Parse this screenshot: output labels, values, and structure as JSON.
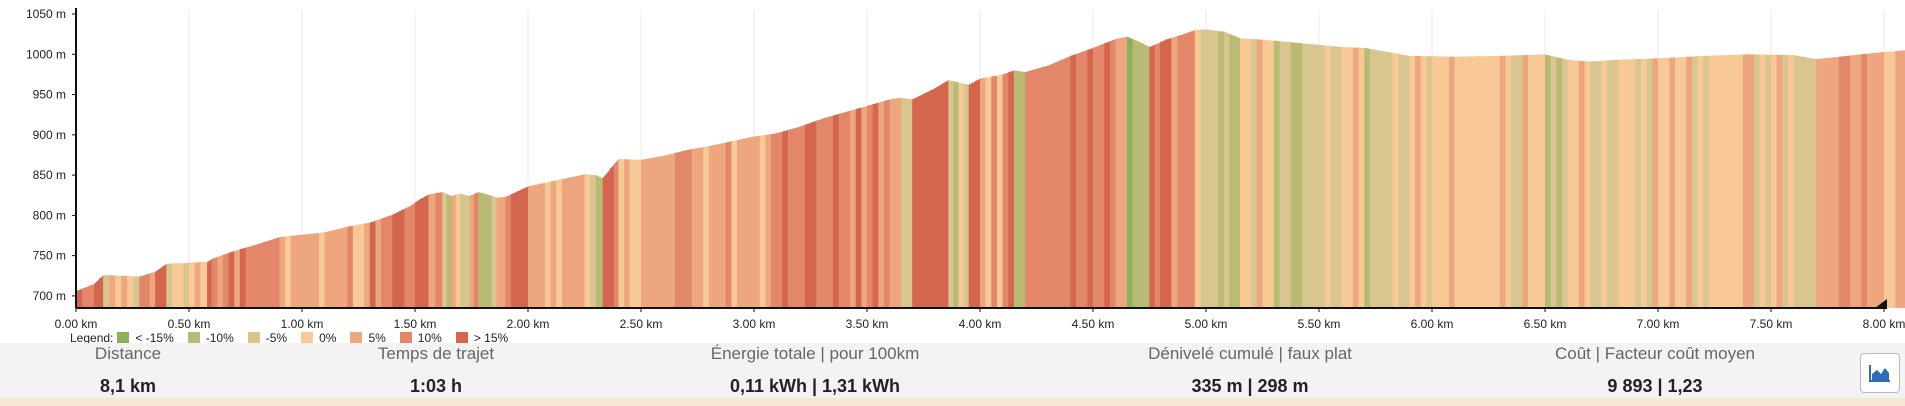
{
  "chart_data": {
    "type": "area",
    "title": "",
    "xlabel": "",
    "ylabel": "",
    "xlim": [
      0,
      8.1
    ],
    "ylim": [
      685,
      1055
    ],
    "x_ticks": [
      "0.00 km",
      "0.50 km",
      "1.00 km",
      "1.50 km",
      "2.00 km",
      "2.50 km",
      "3.00 km",
      "3.50 km",
      "4.00 km",
      "4.50 km",
      "5.00 km",
      "5.50 km",
      "6.00 km",
      "6.50 km",
      "7.00 km",
      "7.50 km",
      "8.00 km"
    ],
    "x_tick_values": [
      0,
      0.5,
      1,
      1.5,
      2,
      2.5,
      3,
      3.5,
      4,
      4.5,
      5,
      5.5,
      6,
      6.5,
      7,
      7.5,
      8
    ],
    "y_ticks": [
      "700 m",
      "750 m",
      "800 m",
      "850 m",
      "900 m",
      "950 m",
      "1000 m",
      "1050 m"
    ],
    "y_tick_values": [
      700,
      750,
      800,
      850,
      900,
      950,
      1000,
      1050
    ],
    "grid": "vertical",
    "elevation_profile": [
      [
        0.0,
        706
      ],
      [
        0.08,
        715
      ],
      [
        0.12,
        726
      ],
      [
        0.2,
        725
      ],
      [
        0.28,
        724
      ],
      [
        0.35,
        730
      ],
      [
        0.4,
        740
      ],
      [
        0.5,
        741
      ],
      [
        0.55,
        742
      ],
      [
        0.58,
        742
      ],
      [
        0.6,
        746
      ],
      [
        0.7,
        756
      ],
      [
        0.8,
        764
      ],
      [
        0.9,
        773
      ],
      [
        1.0,
        776
      ],
      [
        1.1,
        779
      ],
      [
        1.2,
        786
      ],
      [
        1.3,
        791
      ],
      [
        1.4,
        801
      ],
      [
        1.48,
        812
      ],
      [
        1.52,
        820
      ],
      [
        1.56,
        826
      ],
      [
        1.62,
        829
      ],
      [
        1.66,
        824
      ],
      [
        1.7,
        827
      ],
      [
        1.74,
        824
      ],
      [
        1.78,
        829
      ],
      [
        1.82,
        826
      ],
      [
        1.86,
        822
      ],
      [
        1.9,
        823
      ],
      [
        2.0,
        836
      ],
      [
        2.1,
        842
      ],
      [
        2.2,
        848
      ],
      [
        2.25,
        851
      ],
      [
        2.3,
        850
      ],
      [
        2.33,
        846
      ],
      [
        2.36,
        857
      ],
      [
        2.4,
        870
      ],
      [
        2.5,
        869
      ],
      [
        2.6,
        874
      ],
      [
        2.7,
        881
      ],
      [
        2.8,
        886
      ],
      [
        2.9,
        892
      ],
      [
        3.0,
        898
      ],
      [
        3.1,
        902
      ],
      [
        3.2,
        910
      ],
      [
        3.3,
        920
      ],
      [
        3.4,
        928
      ],
      [
        3.5,
        936
      ],
      [
        3.6,
        944
      ],
      [
        3.65,
        946
      ],
      [
        3.7,
        944
      ],
      [
        3.8,
        958
      ],
      [
        3.86,
        968
      ],
      [
        3.95,
        962
      ],
      [
        4.0,
        970
      ],
      [
        4.1,
        975
      ],
      [
        4.15,
        980
      ],
      [
        4.2,
        978
      ],
      [
        4.3,
        986
      ],
      [
        4.4,
        998
      ],
      [
        4.5,
        1008
      ],
      [
        4.6,
        1019
      ],
      [
        4.65,
        1022
      ],
      [
        4.7,
        1016
      ],
      [
        4.75,
        1009
      ],
      [
        4.82,
        1018
      ],
      [
        4.9,
        1025
      ],
      [
        4.95,
        1030
      ],
      [
        5.0,
        1031
      ],
      [
        5.08,
        1028
      ],
      [
        5.15,
        1020
      ],
      [
        5.3,
        1017
      ],
      [
        5.45,
        1013
      ],
      [
        5.6,
        1009
      ],
      [
        5.7,
        1008
      ],
      [
        5.8,
        1003
      ],
      [
        5.9,
        998
      ],
      [
        6.1,
        997
      ],
      [
        6.3,
        998
      ],
      [
        6.5,
        1000
      ],
      [
        6.6,
        993
      ],
      [
        6.7,
        991
      ],
      [
        6.8,
        993
      ],
      [
        7.0,
        995
      ],
      [
        7.2,
        998
      ],
      [
        7.4,
        1000
      ],
      [
        7.6,
        999
      ],
      [
        7.7,
        994
      ],
      [
        7.8,
        997
      ],
      [
        7.9,
        1000
      ],
      [
        8.0,
        1003
      ],
      [
        8.1,
        1005
      ]
    ],
    "legend": [
      {
        "label": "< -15%",
        "color": "#8fb05a"
      },
      {
        "label": "-10%",
        "color": "#b9bb74"
      },
      {
        "label": "-5%",
        "color": "#d9c58f"
      },
      {
        "label": "0%",
        "color": "#f8c996"
      },
      {
        "label": "5%",
        "color": "#eea67f"
      },
      {
        "label": "10%",
        "color": "#e3876a"
      },
      {
        "label": "> 15%",
        "color": "#d4654e"
      }
    ],
    "legend_placement": "bottom-left"
  },
  "legend_title": "Legend:",
  "stats": [
    {
      "label": "Distance",
      "value": "8,1 km"
    },
    {
      "label": "Temps de trajet",
      "value": "1:03 h"
    },
    {
      "label": "Énergie totale | pour 100km",
      "value": "0,11 kWh | 1,31 kWh"
    },
    {
      "label": "Dénivelé cumulé | faux plat",
      "value": "335 m | 298 m"
    },
    {
      "label": "Coût | Facteur coût moyen",
      "value": "9 893 | 1,23"
    }
  ],
  "icons": {
    "chart_toggle": "area-chart-icon",
    "axis_end": "triangle-marker-icon"
  }
}
